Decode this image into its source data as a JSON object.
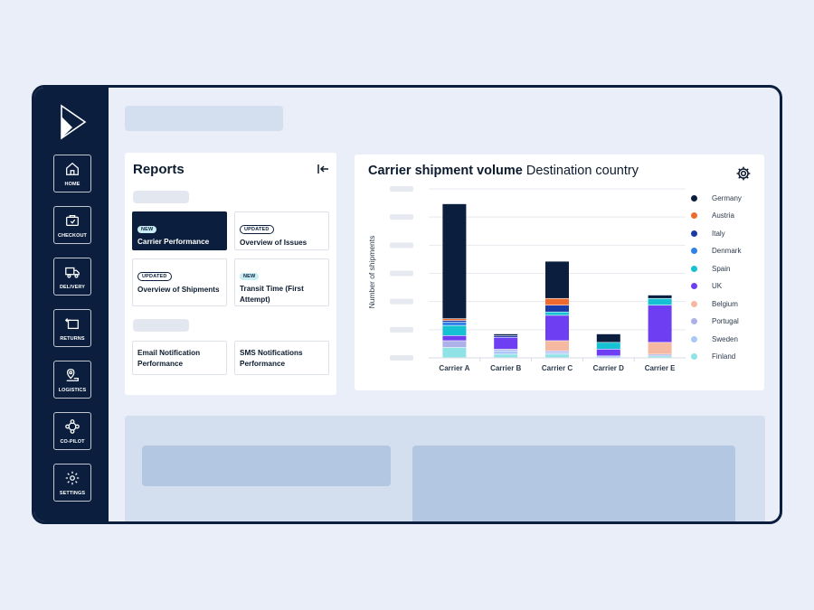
{
  "sidebar": {
    "items": [
      {
        "label": "HOME",
        "color": "#1e3a5f"
      },
      {
        "label": "CHECKOUT",
        "color": "#2e7cf6"
      },
      {
        "label": "DELIVERY",
        "color": "#f26a21"
      },
      {
        "label": "RETURNS",
        "color": "#7b4df5"
      },
      {
        "label": "LOGISTICS",
        "color": "#0b8a9a"
      },
      {
        "label": "CO-PILOT",
        "color": "#1a3bc8"
      },
      {
        "label": "SETTINGS",
        "color": "#1e3a5f"
      }
    ]
  },
  "reports": {
    "title": "Reports",
    "cards": [
      {
        "badge": "NEW",
        "title": "Carrier Performance"
      },
      {
        "badge": "UPDATED",
        "title": "Overview of Issues"
      },
      {
        "badge": "UPDATED",
        "title": "Overview of Shipments"
      },
      {
        "badge": "NEW",
        "title": "Transit Time (First Attempt)"
      },
      {
        "badge": "",
        "title": "Email Notification Performance"
      },
      {
        "badge": "",
        "title": "SMS Notifications Performance"
      }
    ]
  },
  "chart": {
    "title_bold": "Carrier shipment volume",
    "title_rest": "Destination country",
    "ylabel": "Number of shipments"
  },
  "chart_data": {
    "type": "bar",
    "stacked": true,
    "categories": [
      "Carrier A",
      "Carrier B",
      "Carrier C",
      "Carrier D",
      "Carrier E"
    ],
    "ylabel": "Number of shipments",
    "ylim": [
      0,
      100
    ],
    "grid": true,
    "legend_position": "right",
    "series": [
      {
        "name": "Finland",
        "color": "#8fe3e6",
        "values": [
          6,
          2,
          2,
          0,
          1
        ]
      },
      {
        "name": "Sweden",
        "color": "#a9c8f7",
        "values": [
          0,
          2,
          1,
          1,
          0
        ]
      },
      {
        "name": "Portugal",
        "color": "#aeb0e8",
        "values": [
          4,
          1,
          1,
          0,
          1
        ]
      },
      {
        "name": "Belgium",
        "color": "#f5b8a0",
        "values": [
          0,
          0,
          6,
          0,
          7
        ]
      },
      {
        "name": "UK",
        "color": "#6e3ff2",
        "values": [
          3,
          7,
          15,
          4,
          22
        ]
      },
      {
        "name": "Spain",
        "color": "#16c1d3",
        "values": [
          6,
          0,
          2,
          4,
          4
        ]
      },
      {
        "name": "Denmark",
        "color": "#2f80e8",
        "values": [
          2,
          0,
          0,
          0,
          0
        ]
      },
      {
        "name": "Italy",
        "color": "#1a3aa8",
        "values": [
          1,
          1,
          4,
          0,
          0
        ]
      },
      {
        "name": "Austria",
        "color": "#ef6a2f",
        "values": [
          1,
          0,
          4,
          0,
          0
        ]
      },
      {
        "name": "Germany",
        "color": "#0b1e3d",
        "values": [
          68,
          1,
          22,
          5,
          2
        ]
      }
    ],
    "legend_order": [
      "Germany",
      "Austria",
      "Italy",
      "Denmark",
      "Spain",
      "UK",
      "Belgium",
      "Portugal",
      "Sweden",
      "Finland"
    ]
  }
}
